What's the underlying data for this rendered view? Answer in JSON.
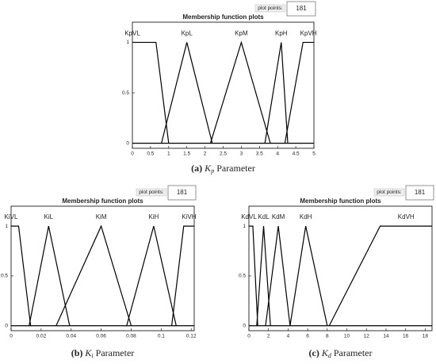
{
  "chart_data": [
    {
      "type": "line",
      "title": "Membership function plots",
      "points_label": "plot points:",
      "points": "181",
      "caption": {
        "label": "(a)",
        "symbol": "K",
        "subscript": "p",
        "text": "Parameter"
      },
      "xlim": [
        0,
        5
      ],
      "xticks": [
        0,
        0.5,
        1,
        1.5,
        2,
        2.5,
        3,
        3.5,
        4,
        4.5,
        5
      ],
      "ylim": [
        -0.05,
        1.2
      ],
      "yticks": [
        0,
        0.5,
        1
      ],
      "series": [
        {
          "name": "KpVL",
          "color": "#000000",
          "x": [
            0,
            0.65,
            1
          ],
          "values": [
            1,
            1,
            0
          ]
        },
        {
          "name": "KpL",
          "color": "#000000",
          "x": [
            0.8,
            1.5,
            2.2
          ],
          "values": [
            0,
            1,
            0
          ]
        },
        {
          "name": "KpM",
          "color": "#000000",
          "x": [
            2.15,
            3,
            3.8
          ],
          "values": [
            0,
            1,
            0
          ]
        },
        {
          "name": "KpH",
          "color": "#000000",
          "x": [
            3.65,
            4.1,
            4.28
          ],
          "values": [
            0,
            1,
            0
          ]
        },
        {
          "name": "KpVH",
          "color": "#000000",
          "x": [
            4.2,
            4.7,
            5
          ],
          "values": [
            0,
            1,
            1
          ]
        }
      ]
    },
    {
      "type": "line",
      "title": "Membership function plots",
      "points_label": "plot points:",
      "points": "181",
      "caption": {
        "label": "(b)",
        "symbol": "K",
        "subscript": "i",
        "text": "Parameter"
      },
      "xlim": [
        0,
        0.122
      ],
      "xticks": [
        0,
        0.02,
        0.04,
        0.06,
        0.08,
        0.1,
        0.12
      ],
      "ylim": [
        -0.05,
        1.2
      ],
      "yticks": [
        0,
        0.5,
        1
      ],
      "series": [
        {
          "name": "KiVL",
          "color": "#000000",
          "x": [
            0,
            0.005,
            0.013
          ],
          "values": [
            1,
            1,
            0
          ]
        },
        {
          "name": "KiL",
          "color": "#000000",
          "x": [
            0.012,
            0.025,
            0.039
          ],
          "values": [
            0,
            1,
            0
          ]
        },
        {
          "name": "KiM",
          "color": "#000000",
          "x": [
            0.03,
            0.06,
            0.08
          ],
          "values": [
            0,
            1,
            0
          ]
        },
        {
          "name": "KiH",
          "color": "#000000",
          "x": [
            0.077,
            0.095,
            0.11
          ],
          "values": [
            0,
            1,
            0
          ]
        },
        {
          "name": "KiVH",
          "color": "#000000",
          "x": [
            0.107,
            0.115,
            0.122
          ],
          "values": [
            0,
            1,
            1
          ]
        }
      ]
    },
    {
      "type": "line",
      "title": "Membership function plots",
      "points_label": "plot points:",
      "points": "181",
      "caption": {
        "label": "(c)",
        "symbol": "K",
        "subscript": "d",
        "text": "Parameter"
      },
      "xlim": [
        0,
        18.7
      ],
      "xticks": [
        0,
        2,
        4,
        6,
        8,
        10,
        12,
        14,
        16,
        18
      ],
      "ylim": [
        -0.05,
        1.2
      ],
      "yticks": [
        0,
        0.5,
        1
      ],
      "series": [
        {
          "name": "KdVL",
          "color": "#000000",
          "x": [
            0,
            0.4,
            0.9
          ],
          "values": [
            1,
            1,
            0
          ]
        },
        {
          "name": "KdL",
          "color": "#000000",
          "x": [
            0.8,
            1.5,
            2.2
          ],
          "values": [
            0,
            1,
            0
          ]
        },
        {
          "name": "KdM",
          "color": "#000000",
          "x": [
            1.7,
            3,
            4.2
          ],
          "values": [
            0,
            1,
            0
          ]
        },
        {
          "name": "KdH",
          "color": "#000000",
          "x": [
            4.2,
            5.8,
            8
          ],
          "values": [
            0,
            1,
            0
          ]
        },
        {
          "name": "KdVH",
          "color": "#000000",
          "x": [
            8.2,
            13.4,
            18.7
          ],
          "values": [
            0,
            1,
            1
          ]
        }
      ]
    }
  ]
}
